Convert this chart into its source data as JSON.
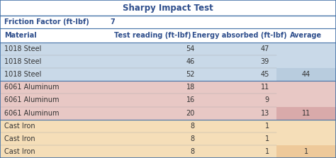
{
  "title": "Sharpy Impact Test",
  "title_color": "#2E4E8C",
  "friction_label": "Friction Factor (ft-lbf)",
  "friction_value": "7",
  "col_headers": [
    "Material",
    "Test reading (ft-lbf)",
    "Energy absorbed (ft-lbf)",
    "Average"
  ],
  "header_color": "#2E4E8C",
  "rows": [
    {
      "material": "1018 Steel",
      "test": "54",
      "energy": "47",
      "average": ""
    },
    {
      "material": "1018 Steel",
      "test": "46",
      "energy": "39",
      "average": ""
    },
    {
      "material": "1018 Steel",
      "test": "52",
      "energy": "45",
      "average": "44"
    },
    {
      "material": "6061 Aluminum",
      "test": "18",
      "energy": "11",
      "average": ""
    },
    {
      "material": "6061 Aluminum",
      "test": "16",
      "energy": "9",
      "average": ""
    },
    {
      "material": "6061 Aluminum",
      "test": "20",
      "energy": "13",
      "average": "11"
    },
    {
      "material": "Cast Iron",
      "test": "8",
      "energy": "1",
      "average": ""
    },
    {
      "material": "Cast Iron",
      "test": "8",
      "energy": "1",
      "average": ""
    },
    {
      "material": "Cast Iron",
      "test": "8",
      "energy": "1",
      "average": "1"
    }
  ],
  "row_colors": {
    "1018 Steel": "#C9D9E8",
    "6061 Aluminum": "#E8C8C5",
    "Cast Iron": "#F5DEB8"
  },
  "avg_colors": {
    "1018 Steel": "#B8CCDE",
    "6061 Aluminum": "#D9AAAA",
    "Cast Iron": "#EEC99A"
  },
  "bg_color": "#FFFFFF",
  "border_color": "#4472A8",
  "text_color": "#333333",
  "title_fs": 8.5,
  "header_fs": 7.0,
  "data_fs": 7.0
}
